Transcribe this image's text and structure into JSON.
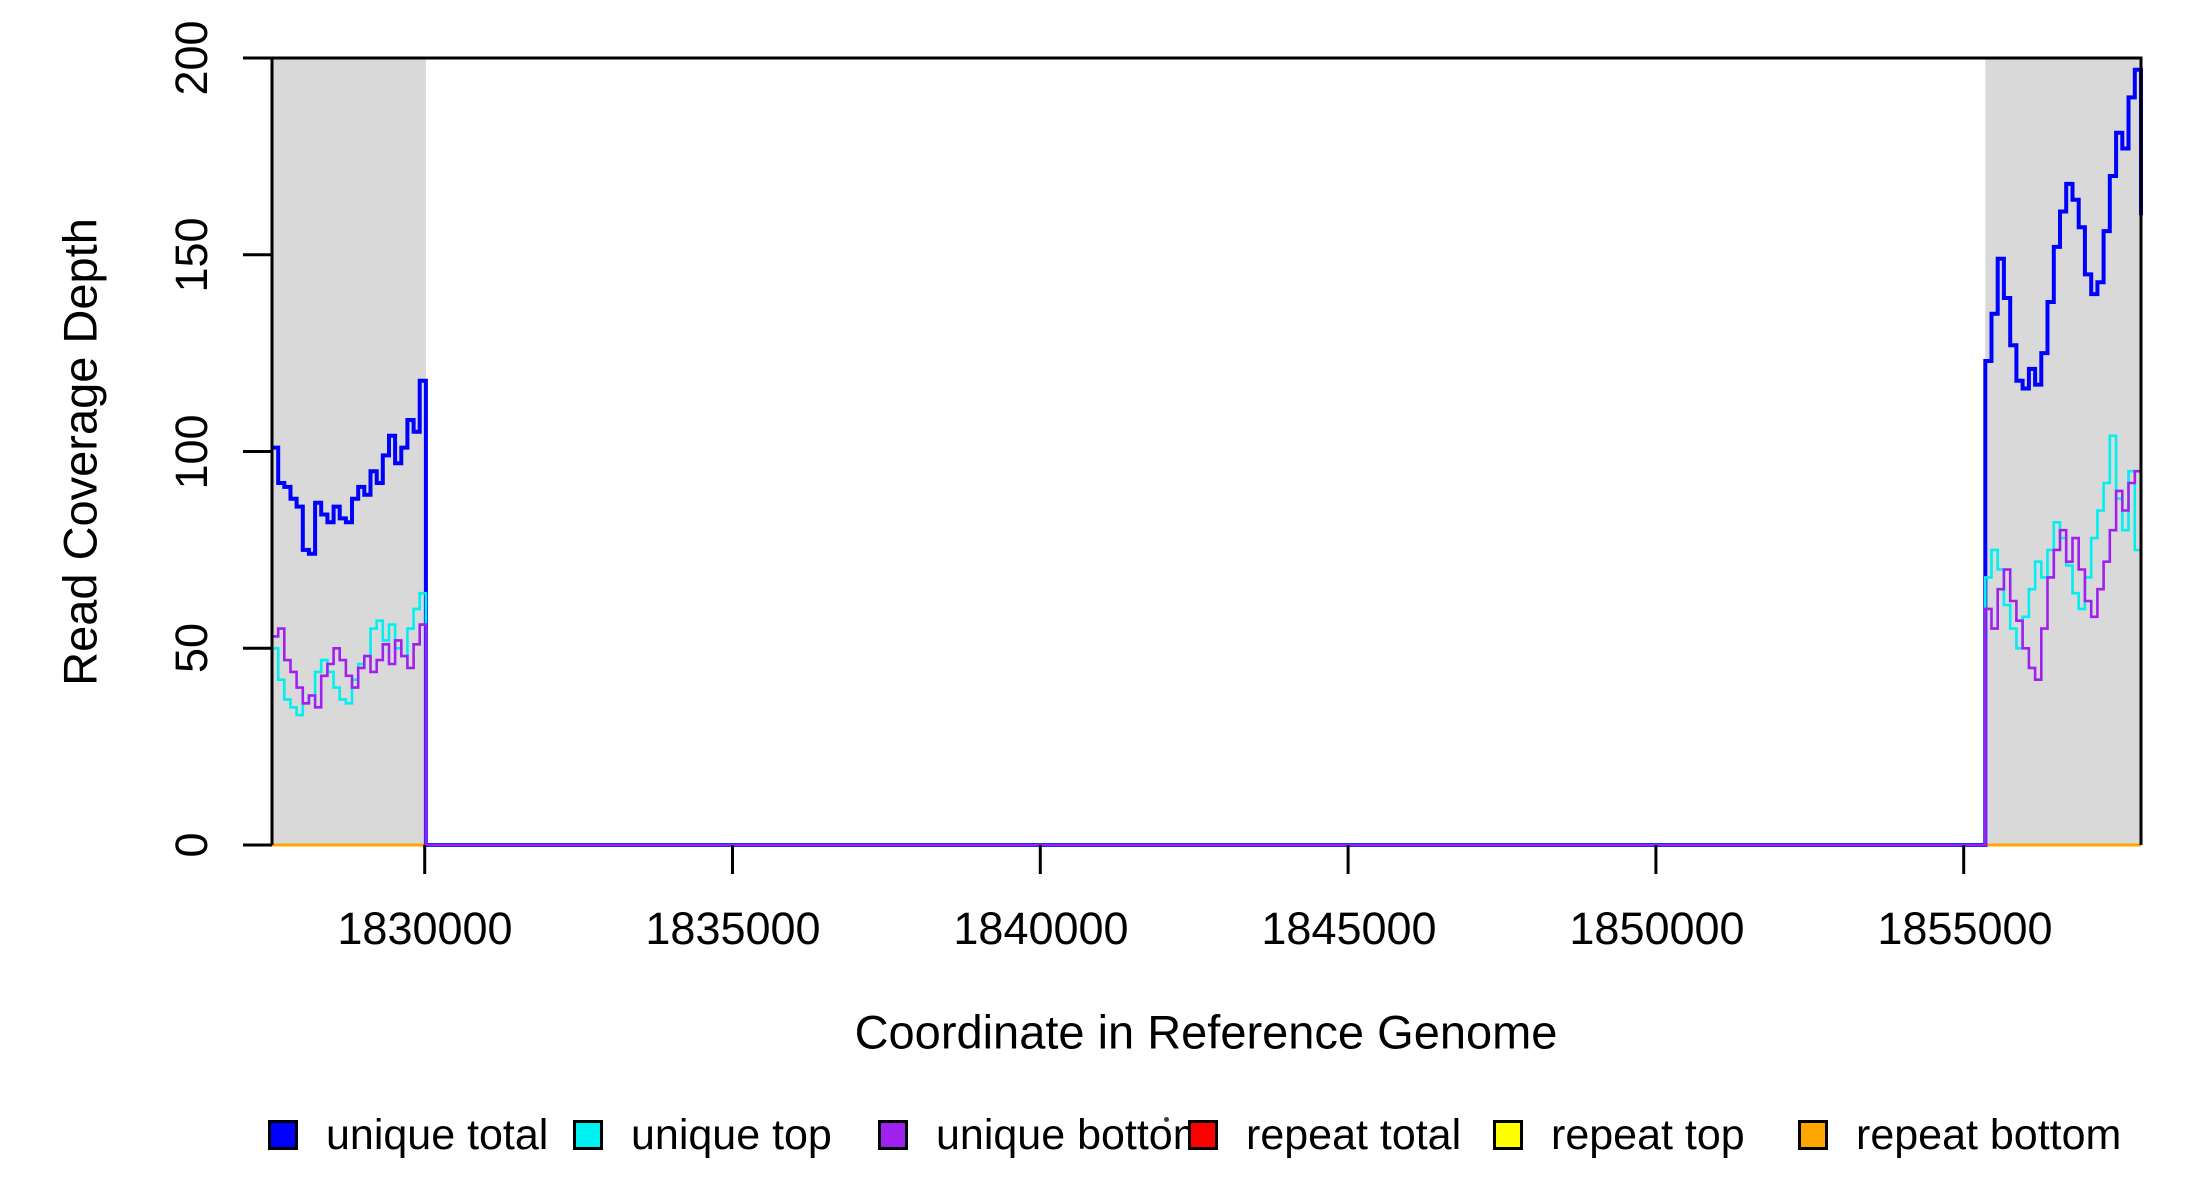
{
  "figure": {
    "background": "#FFFFFF",
    "title": ""
  },
  "chart_data": {
    "type": "line",
    "style": "step",
    "title": "",
    "xlabel": "Coordinate in Reference Genome",
    "ylabel": "Read Coverage Depth",
    "xlim": [
      1827520,
      1857880
    ],
    "ylim": [
      0,
      200
    ],
    "x_ticks": [
      1830000,
      1835000,
      1840000,
      1845000,
      1850000,
      1855000
    ],
    "y_ticks": [
      0,
      50,
      100,
      150,
      200
    ],
    "grid": false,
    "legend_position": "bottom-horizontal",
    "shaded_region_color": "#D9D9D9",
    "shaded_regions": [
      {
        "start": 1827520,
        "end": 1830020
      },
      {
        "start": 1855350,
        "end": 1857880
      }
    ],
    "series": [
      {
        "name": "unique total",
        "color": "#0000FF",
        "width": 4,
        "left_values": [
          101,
          92,
          91,
          88,
          86,
          75,
          74,
          87,
          84,
          82,
          86,
          83,
          82,
          88,
          91,
          89,
          95,
          92,
          99,
          104,
          97,
          101,
          108,
          105,
          118
        ],
        "middle_value": 0,
        "right_values": [
          123,
          135,
          149,
          139,
          127,
          118,
          116,
          121,
          117,
          125,
          138,
          152,
          161,
          168,
          164,
          157,
          145,
          140,
          143,
          156,
          170,
          181,
          177,
          190,
          197
        ],
        "edge_drop": 160
      },
      {
        "name": "unique top",
        "color": "#00EFEF",
        "width": 2.6,
        "left_values": [
          50,
          42,
          37,
          35,
          33,
          36,
          38,
          44,
          47,
          44,
          40,
          37,
          36,
          42,
          46,
          48,
          55,
          57,
          52,
          56,
          50,
          48,
          55,
          60,
          64
        ],
        "middle_value": 0,
        "right_values": [
          68,
          75,
          70,
          61,
          55,
          50,
          58,
          65,
          72,
          68,
          75,
          82,
          78,
          71,
          64,
          60,
          68,
          78,
          85,
          92,
          104,
          88,
          80,
          95,
          75
        ]
      },
      {
        "name": "unique bottom",
        "color": "#A020F0",
        "width": 2.6,
        "left_values": [
          53,
          55,
          47,
          44,
          40,
          36,
          38,
          35,
          43,
          46,
          50,
          47,
          43,
          40,
          45,
          48,
          44,
          47,
          51,
          46,
          52,
          48,
          45,
          51,
          56
        ],
        "middle_value": 0,
        "right_values": [
          60,
          55,
          65,
          70,
          62,
          57,
          50,
          45,
          42,
          55,
          68,
          75,
          80,
          72,
          78,
          70,
          62,
          58,
          65,
          72,
          80,
          90,
          85,
          92,
          95
        ]
      },
      {
        "name": "repeat total",
        "color": "#FF0000",
        "width": 3,
        "constant_value": 0
      },
      {
        "name": "repeat top",
        "color": "#FFFF00",
        "width": 3,
        "constant_value": 0
      },
      {
        "name": "repeat bottom",
        "color": "#FFA500",
        "width": 3,
        "constant_value": 0
      }
    ],
    "legend": {
      "entries": [
        {
          "label": "unique total",
          "color": "#0000FF"
        },
        {
          "label": "unique top",
          "color": "#00EFEF"
        },
        {
          "label": "unique bottom",
          "color": "#A020F0"
        },
        {
          "label": "repeat total",
          "color": "#FF0000"
        },
        {
          "label": "repeat top",
          "color": "#FFFF00"
        },
        {
          "label": "repeat bottom",
          "color": "#FFA500"
        }
      ]
    }
  }
}
